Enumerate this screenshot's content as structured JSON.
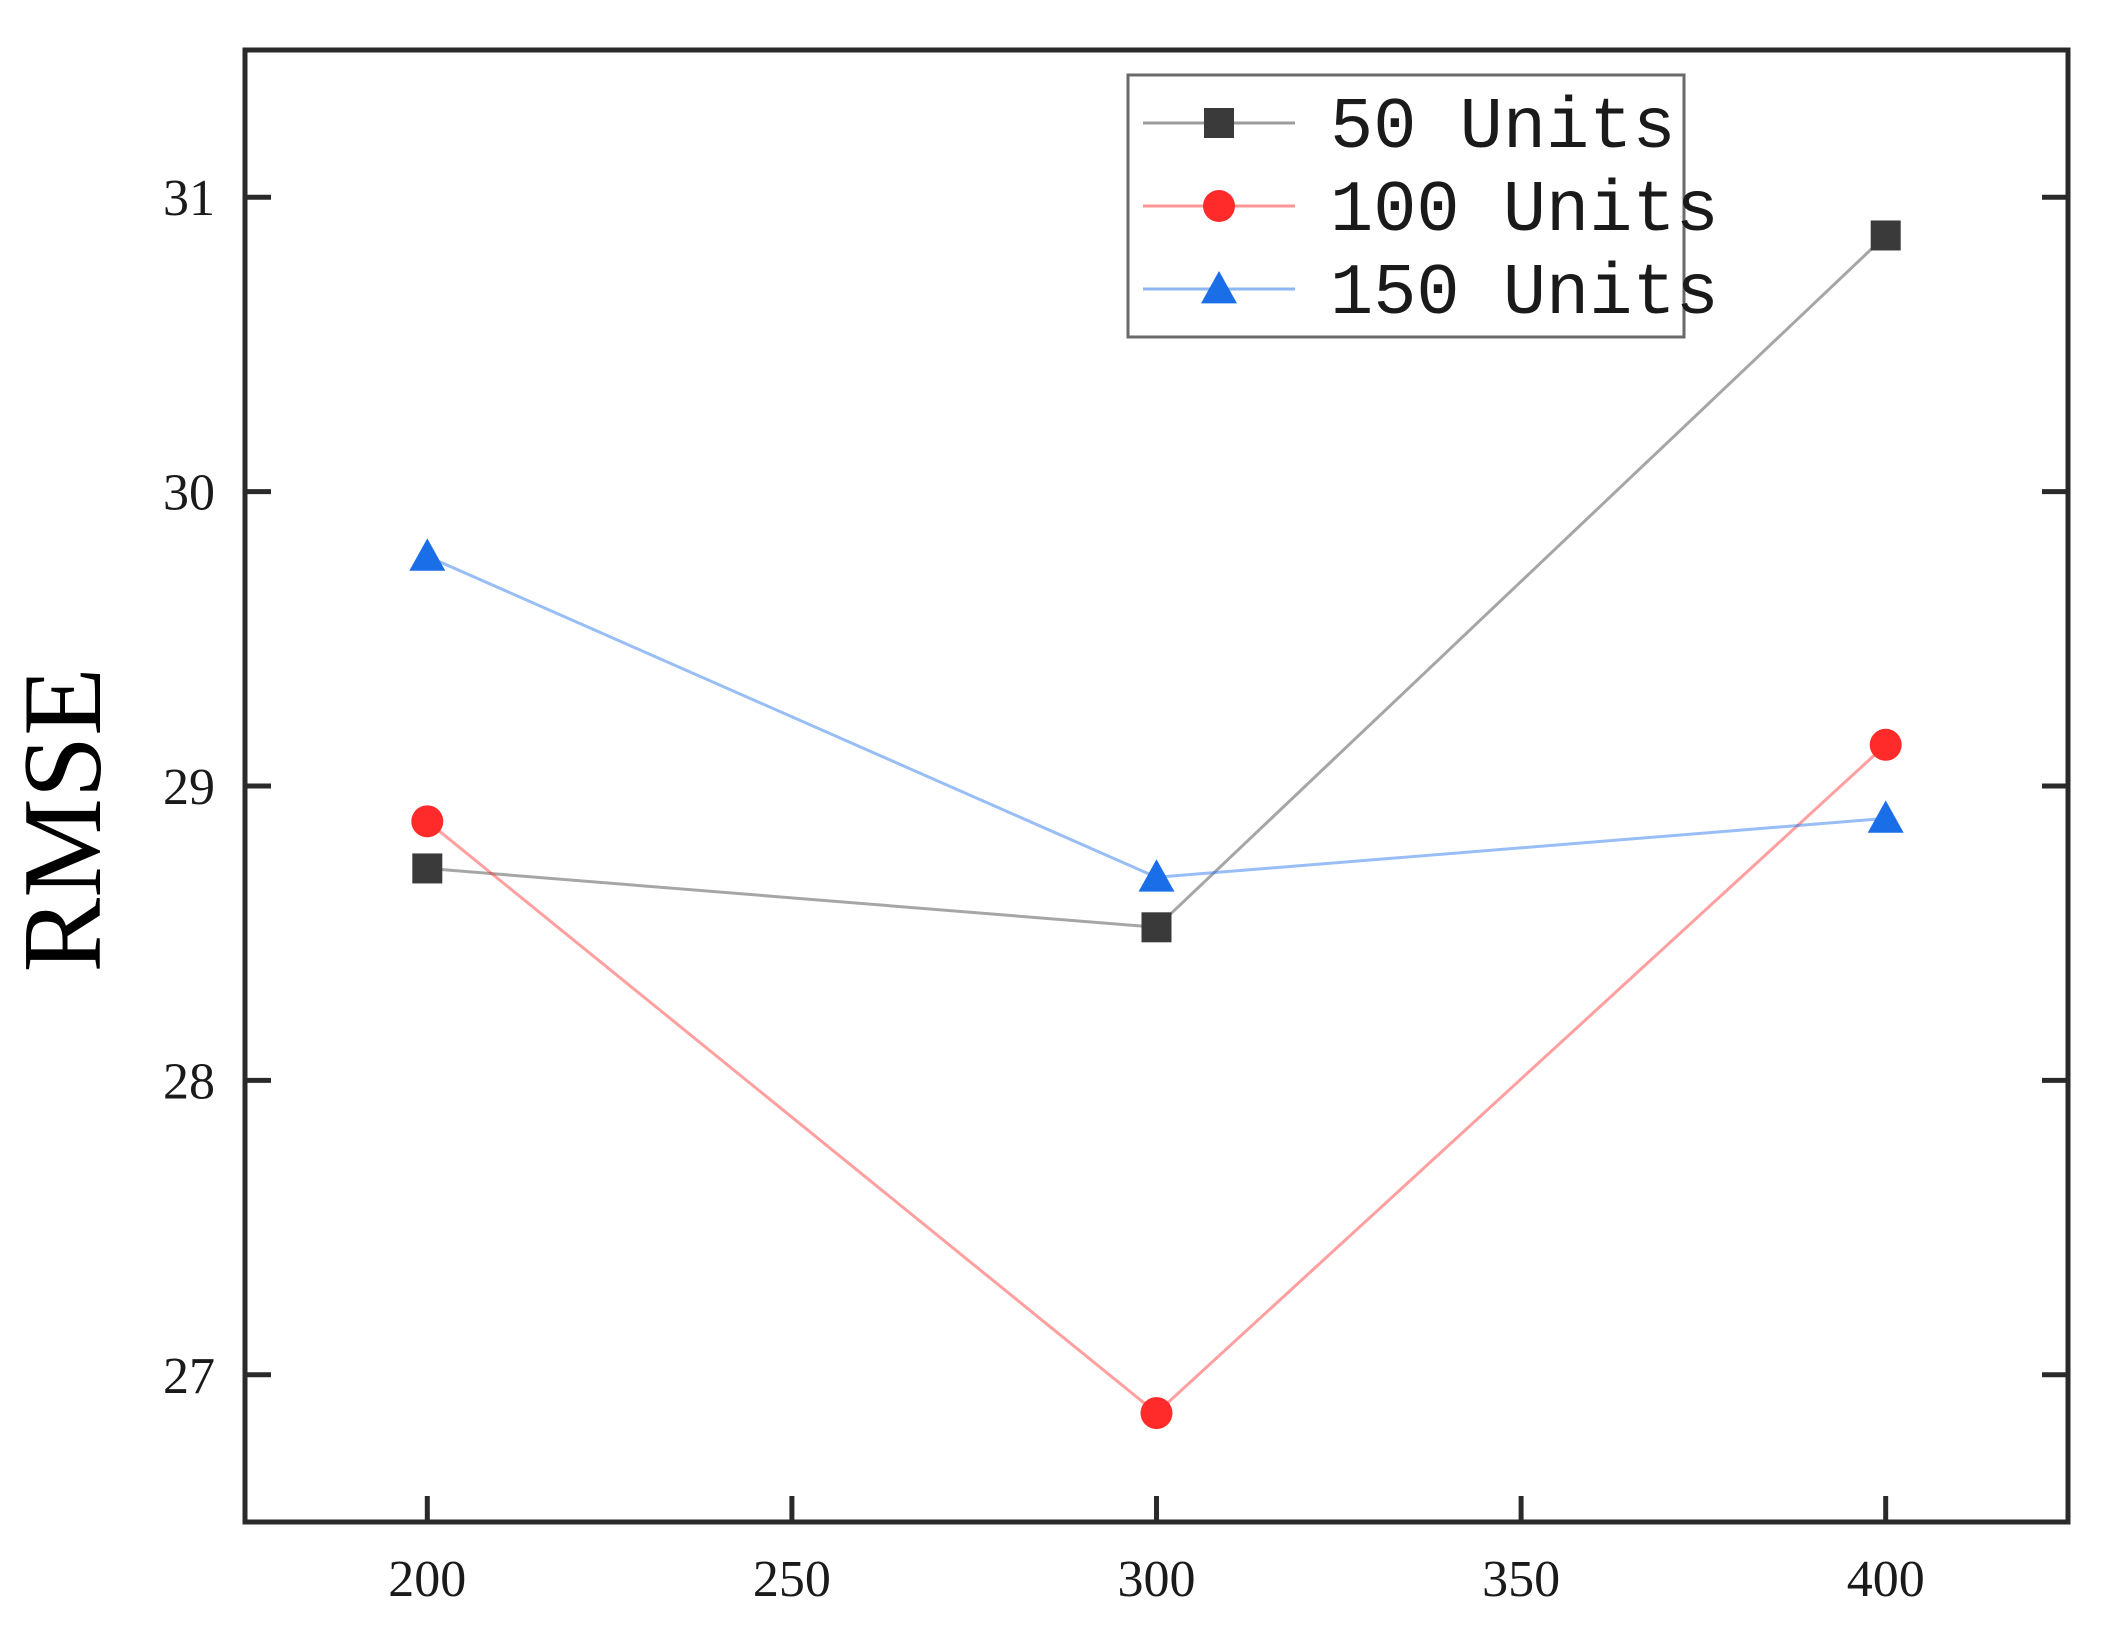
{
  "chart_data": {
    "type": "line",
    "title": "",
    "xlabel": "",
    "ylabel": "RMSE",
    "xlim": [
      175,
      425
    ],
    "ylim": [
      26.5,
      31.5
    ],
    "x_ticks": [
      200,
      250,
      300,
      350,
      400
    ],
    "y_ticks": [
      27,
      28,
      29,
      30,
      31
    ],
    "grid": false,
    "legend_position": "top-right",
    "x": [
      200,
      300,
      400
    ],
    "series": [
      {
        "name": "50 Units",
        "values": [
          28.72,
          28.52,
          30.87
        ],
        "color": "#3a3a3a",
        "marker": "square"
      },
      {
        "name": "100 Units",
        "values": [
          28.88,
          26.87,
          29.14
        ],
        "color": "#ff2a2a",
        "marker": "circle"
      },
      {
        "name": "150 Units",
        "values": [
          29.78,
          28.69,
          28.89
        ],
        "color": "#1a6fe8",
        "marker": "triangle"
      }
    ]
  }
}
